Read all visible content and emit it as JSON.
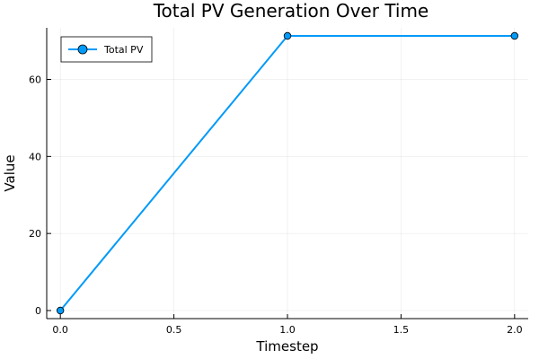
{
  "chart_data": {
    "type": "line",
    "title": "Total PV Generation Over Time",
    "xlabel": "Timestep",
    "ylabel": "Value",
    "xlim": [
      -0.06,
      2.06
    ],
    "ylim": [
      -2.1,
      73.4
    ],
    "xticks": [
      0.0,
      0.5,
      1.0,
      1.5,
      2.0
    ],
    "xtick_labels": [
      "0.0",
      "0.5",
      "1.0",
      "1.5",
      "2.0"
    ],
    "yticks": [
      0,
      20,
      40,
      60
    ],
    "ytick_labels": [
      "0",
      "20",
      "40",
      "60"
    ],
    "grid": true,
    "legend_position": "top-left",
    "series": [
      {
        "name": "Total PV",
        "x": [
          0.0,
          1.0,
          2.0
        ],
        "y": [
          0.0,
          71.3,
          71.3
        ],
        "color": "#009af9",
        "marker": "circle"
      }
    ]
  }
}
